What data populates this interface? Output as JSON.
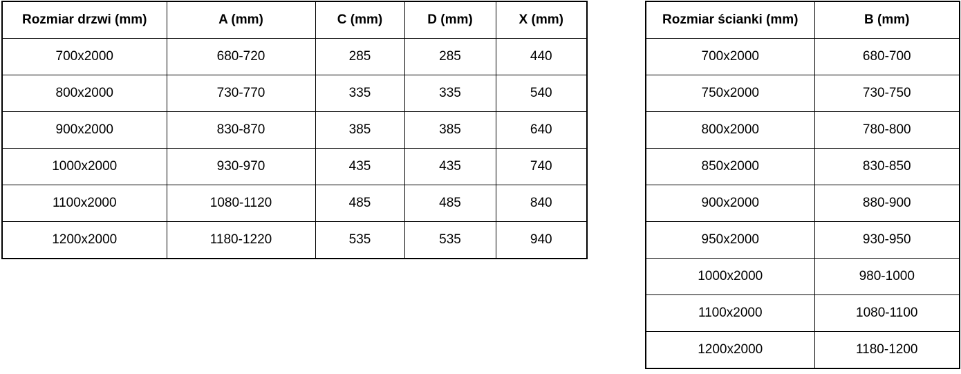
{
  "colors": {
    "background": "#ffffff",
    "border": "#000000",
    "text": "#000000"
  },
  "tables": [
    {
      "id": "door-dimensions",
      "headers": [
        "Rozmiar drzwi (mm)",
        "A (mm)",
        "C (mm)",
        "D (mm)",
        "X (mm)"
      ],
      "rows": [
        [
          "700x2000",
          "680-720",
          "285",
          "285",
          "440"
        ],
        [
          "800x2000",
          "730-770",
          "335",
          "335",
          "540"
        ],
        [
          "900x2000",
          "830-870",
          "385",
          "385",
          "640"
        ],
        [
          "1000x2000",
          "930-970",
          "435",
          "435",
          "740"
        ],
        [
          "1100x2000",
          "1080-1120",
          "485",
          "485",
          "840"
        ],
        [
          "1200x2000",
          "1180-1220",
          "535",
          "535",
          "940"
        ]
      ]
    },
    {
      "id": "panel-dimensions",
      "headers": [
        "Rozmiar ścianki (mm)",
        "B (mm)"
      ],
      "rows": [
        [
          "700x2000",
          "680-700"
        ],
        [
          "750x2000",
          "730-750"
        ],
        [
          "800x2000",
          "780-800"
        ],
        [
          "850x2000",
          "830-850"
        ],
        [
          "900x2000",
          "880-900"
        ],
        [
          "950x2000",
          "930-950"
        ],
        [
          "1000x2000",
          "980-1000"
        ],
        [
          "1100x2000",
          "1080-1100"
        ],
        [
          "1200x2000",
          "1180-1200"
        ]
      ]
    }
  ]
}
